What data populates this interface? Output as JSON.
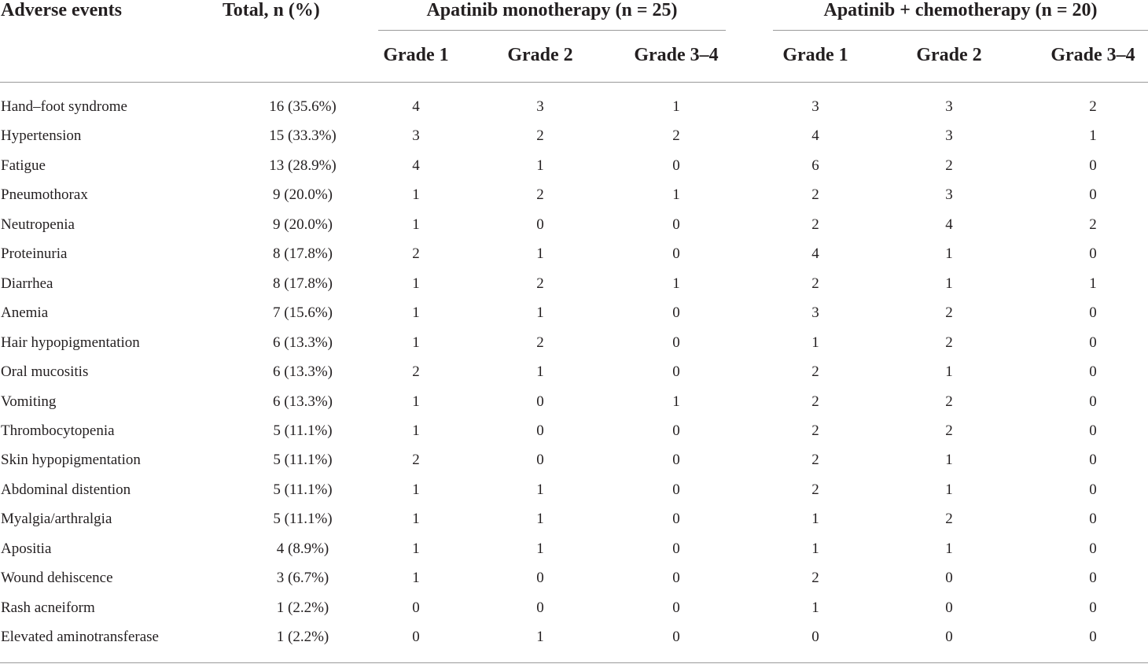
{
  "header": {
    "adverse_events": "Adverse events",
    "total": "Total, n (%)",
    "group_a": "Apatinib monotherapy (n = 25)",
    "group_b": "Apatinib + chemotherapy (n = 20)",
    "grades": [
      "Grade 1",
      "Grade 2",
      "Grade 3–4"
    ]
  },
  "rows": [
    {
      "event": "Hand–foot syndrome",
      "total": "16 (35.6%)",
      "mono": [
        "4",
        "3",
        "1"
      ],
      "chemo": [
        "3",
        "3",
        "2"
      ]
    },
    {
      "event": "Hypertension",
      "total": "15 (33.3%)",
      "mono": [
        "3",
        "2",
        "2"
      ],
      "chemo": [
        "4",
        "3",
        "1"
      ]
    },
    {
      "event": "Fatigue",
      "total": "13 (28.9%)",
      "mono": [
        "4",
        "1",
        "0"
      ],
      "chemo": [
        "6",
        "2",
        "0"
      ]
    },
    {
      "event": "Pneumothorax",
      "total": "9 (20.0%)",
      "mono": [
        "1",
        "2",
        "1"
      ],
      "chemo": [
        "2",
        "3",
        "0"
      ]
    },
    {
      "event": "Neutropenia",
      "total": "9 (20.0%)",
      "mono": [
        "1",
        "0",
        "0"
      ],
      "chemo": [
        "2",
        "4",
        "2"
      ]
    },
    {
      "event": "Proteinuria",
      "total": "8 (17.8%)",
      "mono": [
        "2",
        "1",
        "0"
      ],
      "chemo": [
        "4",
        "1",
        "0"
      ]
    },
    {
      "event": "Diarrhea",
      "total": "8 (17.8%)",
      "mono": [
        "1",
        "2",
        "1"
      ],
      "chemo": [
        "2",
        "1",
        "1"
      ]
    },
    {
      "event": "Anemia",
      "total": "7 (15.6%)",
      "mono": [
        "1",
        "1",
        "0"
      ],
      "chemo": [
        "3",
        "2",
        "0"
      ]
    },
    {
      "event": "Hair hypopigmentation",
      "total": "6 (13.3%)",
      "mono": [
        "1",
        "2",
        "0"
      ],
      "chemo": [
        "1",
        "2",
        "0"
      ]
    },
    {
      "event": "Oral mucositis",
      "total": "6 (13.3%)",
      "mono": [
        "2",
        "1",
        "0"
      ],
      "chemo": [
        "2",
        "1",
        "0"
      ]
    },
    {
      "event": "Vomiting",
      "total": "6 (13.3%)",
      "mono": [
        "1",
        "0",
        "1"
      ],
      "chemo": [
        "2",
        "2",
        "0"
      ]
    },
    {
      "event": "Thrombocytopenia",
      "total": "5 (11.1%)",
      "mono": [
        "1",
        "0",
        "0"
      ],
      "chemo": [
        "2",
        "2",
        "0"
      ]
    },
    {
      "event": "Skin hypopigmentation",
      "total": "5 (11.1%)",
      "mono": [
        "2",
        "0",
        "0"
      ],
      "chemo": [
        "2",
        "1",
        "0"
      ]
    },
    {
      "event": "Abdominal distention",
      "total": "5 (11.1%)",
      "mono": [
        "1",
        "1",
        "0"
      ],
      "chemo": [
        "2",
        "1",
        "0"
      ]
    },
    {
      "event": "Myalgia/arthralgia",
      "total": "5 (11.1%)",
      "mono": [
        "1",
        "1",
        "0"
      ],
      "chemo": [
        "1",
        "2",
        "0"
      ]
    },
    {
      "event": "Apositia",
      "total": "4 (8.9%)",
      "mono": [
        "1",
        "1",
        "0"
      ],
      "chemo": [
        "1",
        "1",
        "0"
      ]
    },
    {
      "event": "Wound dehiscence",
      "total": "3 (6.7%)",
      "mono": [
        "1",
        "0",
        "0"
      ],
      "chemo": [
        "2",
        "0",
        "0"
      ]
    },
    {
      "event": "Rash acneiform",
      "total": "1 (2.2%)",
      "mono": [
        "0",
        "0",
        "0"
      ],
      "chemo": [
        "1",
        "0",
        "0"
      ]
    },
    {
      "event": "Elevated aminotransferase",
      "total": "1 (2.2%)",
      "mono": [
        "0",
        "1",
        "0"
      ],
      "chemo": [
        "0",
        "0",
        "0"
      ]
    }
  ]
}
